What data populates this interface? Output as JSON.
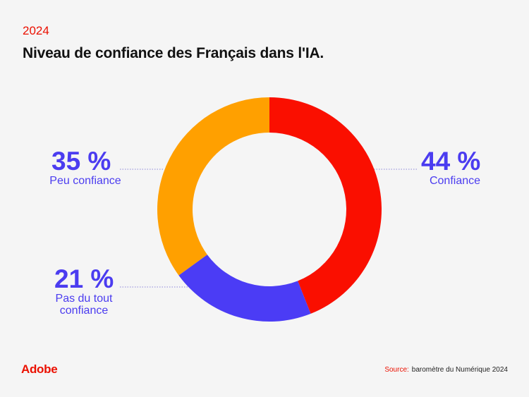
{
  "header": {
    "year": "2024",
    "title": "Niveau de confiance des Français dans l'IA."
  },
  "chart_data": {
    "type": "pie",
    "donut": true,
    "slices": [
      {
        "label": "Confiance",
        "value": 44,
        "display": "44 %",
        "color": "#fa0f00"
      },
      {
        "label": "Pas du tout confiance",
        "value": 21,
        "display": "21 %",
        "color": "#4b3cf5"
      },
      {
        "label": "Peu confiance",
        "value": 35,
        "display": "35 %",
        "color": "#ffa000"
      }
    ],
    "title": "Niveau de confiance des Français dans l'IA."
  },
  "labels": {
    "confiance": {
      "pct": "44 %",
      "text": "Confiance"
    },
    "peu": {
      "pct": "35 %",
      "text": "Peu confiance"
    },
    "pas": {
      "pct": "21 %",
      "text": "Pas du tout confiance"
    }
  },
  "footer": {
    "logo": "Adobe",
    "source_label": "Source:",
    "source_text": "baromètre du Numérique 2024"
  }
}
